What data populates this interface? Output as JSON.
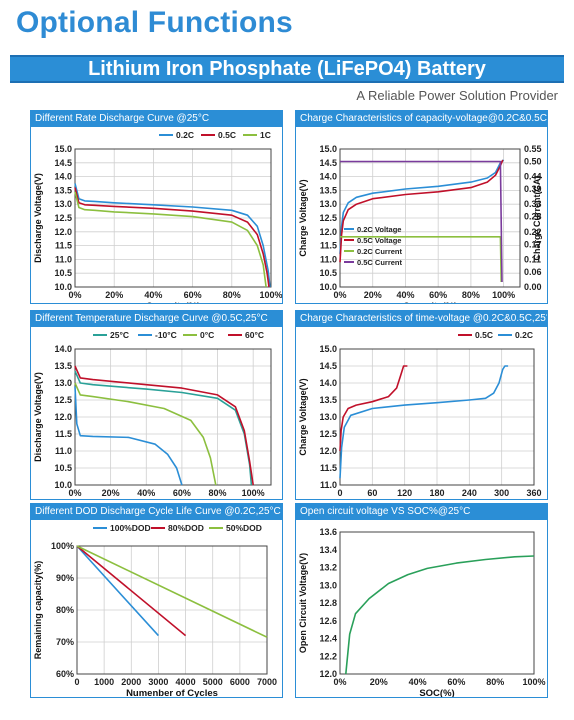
{
  "page": {
    "title": "Optional Functions",
    "banner": "Lithium Iron Phosphate (LiFePO4) Battery",
    "tagline": "A Reliable Power Solution Provider"
  },
  "chart_data": [
    {
      "id": "c1",
      "type": "line",
      "title": "Different Rate Discharge Curve @25°C",
      "xlabel": "Capacity(%)",
      "ylabel": "Discharge Voltage(V)",
      "xlim": [
        0,
        100
      ],
      "ylim": [
        10,
        15
      ],
      "xticks": [
        0,
        20,
        40,
        60,
        80,
        100
      ],
      "xtick_labels": [
        "0%",
        "20%",
        "40%",
        "60%",
        "80%",
        "100%"
      ],
      "yticks": [
        10,
        10.5,
        11,
        11.5,
        12,
        12.5,
        13,
        13.5,
        14,
        14.5,
        15
      ],
      "ytick_labels": [
        "10.0",
        "10.5",
        "11.0",
        "11.5",
        "12.0",
        "12.5",
        "13.0",
        "13.5",
        "14.0",
        "14.5",
        "15.0"
      ],
      "grid": true,
      "legend_position": "top",
      "series": [
        {
          "name": "0.2C",
          "color": "#2b8ed6",
          "points": [
            [
              0,
              13.75
            ],
            [
              2,
              13.2
            ],
            [
              5,
              13.12
            ],
            [
              10,
              13.1
            ],
            [
              20,
              13.05
            ],
            [
              40,
              12.98
            ],
            [
              60,
              12.9
            ],
            [
              80,
              12.78
            ],
            [
              88,
              12.6
            ],
            [
              93,
              12.2
            ],
            [
              96,
              11.5
            ],
            [
              98.5,
              10.6
            ],
            [
              99.5,
              10.0
            ]
          ]
        },
        {
          "name": "0.5C",
          "color": "#c0102a",
          "points": [
            [
              0,
              13.6
            ],
            [
              2,
              13.05
            ],
            [
              5,
              12.98
            ],
            [
              10,
              12.96
            ],
            [
              20,
              12.92
            ],
            [
              40,
              12.85
            ],
            [
              60,
              12.75
            ],
            [
              80,
              12.6
            ],
            [
              88,
              12.35
            ],
            [
              93,
              11.9
            ],
            [
              96,
              11.2
            ],
            [
              98,
              10.5
            ],
            [
              99,
              10.0
            ]
          ]
        },
        {
          "name": "1C",
          "color": "#8cbf3f",
          "points": [
            [
              0,
              13.45
            ],
            [
              2,
              12.88
            ],
            [
              5,
              12.8
            ],
            [
              10,
              12.78
            ],
            [
              20,
              12.72
            ],
            [
              40,
              12.65
            ],
            [
              60,
              12.55
            ],
            [
              80,
              12.35
            ],
            [
              88,
              12.05
            ],
            [
              93,
              11.5
            ],
            [
              96,
              10.8
            ],
            [
              97.5,
              10.0
            ]
          ]
        }
      ]
    },
    {
      "id": "c2",
      "type": "line",
      "title": "Charge Characteristics of capacity-voltage@0.2C&0.5C,25°C",
      "xlabel": "Capacity(%)",
      "ylabel": "Charge Voltage(V)",
      "y2label": "Charge Current(CA)",
      "xlim": [
        0,
        110
      ],
      "ylim": [
        10,
        15
      ],
      "y2lim": [
        0,
        0.55
      ],
      "xticks": [
        0,
        20,
        40,
        60,
        80,
        100
      ],
      "xtick_labels": [
        "0%",
        "20%",
        "40%",
        "60%",
        "80%",
        "100%"
      ],
      "yticks": [
        10,
        10.5,
        11,
        11.5,
        12,
        12.5,
        13,
        13.5,
        14,
        14.5,
        15
      ],
      "ytick_labels": [
        "10.0",
        "10.5",
        "11.0",
        "11.5",
        "12.0",
        "12.5",
        "13.0",
        "13.5",
        "14.0",
        "14.5",
        "15.0"
      ],
      "y2ticks": [
        0,
        0.06,
        0.11,
        0.17,
        0.22,
        0.28,
        0.33,
        0.39,
        0.44,
        0.5,
        0.55
      ],
      "y2tick_labels": [
        "0.00",
        "0.06",
        "0.11",
        "0.17",
        "0.22",
        "0.28",
        "0.33",
        "0.39",
        "0.44",
        "0.50",
        "0.55"
      ],
      "grid": true,
      "legend_position": "bottom-left",
      "series": [
        {
          "name": "0.2C Voltage",
          "color": "#2b8ed6",
          "points": [
            [
              0,
              11.2
            ],
            [
              1,
              12.2
            ],
            [
              2,
              12.7
            ],
            [
              5,
              13.05
            ],
            [
              10,
              13.25
            ],
            [
              20,
              13.4
            ],
            [
              40,
              13.55
            ],
            [
              60,
              13.65
            ],
            [
              80,
              13.8
            ],
            [
              90,
              13.95
            ],
            [
              95,
              14.15
            ],
            [
              98,
              14.5
            ],
            [
              100,
              14.6
            ]
          ]
        },
        {
          "name": "0.5C Voltage",
          "color": "#c0102a",
          "points": [
            [
              0,
              10.9
            ],
            [
              1,
              11.9
            ],
            [
              2,
              12.4
            ],
            [
              5,
              12.8
            ],
            [
              10,
              13.0
            ],
            [
              20,
              13.2
            ],
            [
              40,
              13.35
            ],
            [
              60,
              13.45
            ],
            [
              80,
              13.6
            ],
            [
              90,
              13.8
            ],
            [
              95,
              14.05
            ],
            [
              98,
              14.4
            ],
            [
              99.5,
              14.6
            ]
          ]
        },
        {
          "name": "0.2C Current",
          "axis": "y2",
          "color": "#8cbf3f",
          "points": [
            [
              0,
              0.2
            ],
            [
              98,
              0.2
            ],
            [
              98.5,
              0.02
            ]
          ]
        },
        {
          "name": "0.5C Current",
          "axis": "y2",
          "color": "#7a3b9c",
          "points": [
            [
              0,
              0.5
            ],
            [
              98,
              0.5
            ],
            [
              99,
              0.02
            ]
          ]
        }
      ]
    },
    {
      "id": "c3",
      "type": "line",
      "title": "Different Temperature Discharge Curve @0.5C,25°C",
      "xlabel": "Capacity(%)",
      "ylabel": "Discharge Voltage(V)",
      "xlim": [
        0,
        110
      ],
      "ylim": [
        10,
        14
      ],
      "xticks": [
        0,
        20,
        40,
        60,
        80,
        100
      ],
      "xtick_labels": [
        "0%",
        "20%",
        "40%",
        "60%",
        "80%",
        "100%"
      ],
      "yticks": [
        10,
        10.5,
        11,
        11.5,
        12,
        12.5,
        13,
        13.5,
        14
      ],
      "ytick_labels": [
        "10.0",
        "10.5",
        "11.0",
        "11.5",
        "12.0",
        "12.5",
        "13.0",
        "13.5",
        "14.0"
      ],
      "grid": true,
      "legend_position": "top",
      "series": [
        {
          "name": "25°C",
          "color": "#2aa198",
          "points": [
            [
              0,
              13.35
            ],
            [
              3,
              13.0
            ],
            [
              10,
              12.95
            ],
            [
              40,
              12.82
            ],
            [
              60,
              12.72
            ],
            [
              80,
              12.55
            ],
            [
              90,
              12.2
            ],
            [
              95,
              11.5
            ],
            [
              98,
              10.6
            ],
            [
              99,
              10.0
            ]
          ]
        },
        {
          "name": "-10°C",
          "color": "#2b8ed6",
          "points": [
            [
              0,
              12.9
            ],
            [
              1,
              11.8
            ],
            [
              3,
              11.45
            ],
            [
              10,
              11.43
            ],
            [
              30,
              11.4
            ],
            [
              45,
              11.2
            ],
            [
              52,
              10.9
            ],
            [
              57,
              10.5
            ],
            [
              60,
              10.0
            ]
          ]
        },
        {
          "name": "0°C",
          "color": "#8cbf3f",
          "points": [
            [
              0,
              13.0
            ],
            [
              3,
              12.65
            ],
            [
              10,
              12.6
            ],
            [
              30,
              12.45
            ],
            [
              50,
              12.25
            ],
            [
              65,
              11.9
            ],
            [
              72,
              11.4
            ],
            [
              76,
              10.8
            ],
            [
              79,
              10.0
            ]
          ]
        },
        {
          "name": "60°C",
          "color": "#c0102a",
          "points": [
            [
              0,
              13.5
            ],
            [
              3,
              13.15
            ],
            [
              10,
              13.1
            ],
            [
              40,
              12.95
            ],
            [
              60,
              12.85
            ],
            [
              80,
              12.65
            ],
            [
              90,
              12.3
            ],
            [
              95,
              11.6
            ],
            [
              98,
              10.7
            ],
            [
              100,
              10.0
            ]
          ]
        }
      ]
    },
    {
      "id": "c4",
      "type": "line",
      "title": "Charge Characteristics of time-voltage @0.2C&0.5C,25°C",
      "xlabel": "Charge time(min)",
      "ylabel": "Charge Voltage(V)",
      "xlim": [
        0,
        360
      ],
      "ylim": [
        11,
        15
      ],
      "xticks": [
        0,
        60,
        120,
        180,
        240,
        300,
        360
      ],
      "xtick_labels": [
        "0",
        "60",
        "120",
        "180",
        "240",
        "300",
        "360"
      ],
      "yticks": [
        11,
        11.5,
        12,
        12.5,
        13,
        13.5,
        14,
        14.5,
        15
      ],
      "ytick_labels": [
        "11.0",
        "11.5",
        "12.0",
        "12.5",
        "13.0",
        "13.5",
        "14.0",
        "14.5",
        "15.0"
      ],
      "grid": true,
      "legend_position": "top",
      "series": [
        {
          "name": "0.5C",
          "color": "#c0102a",
          "points": [
            [
              0,
              12.0
            ],
            [
              2,
              12.6
            ],
            [
              6,
              13.0
            ],
            [
              15,
              13.25
            ],
            [
              30,
              13.35
            ],
            [
              60,
              13.45
            ],
            [
              90,
              13.6
            ],
            [
              105,
              13.85
            ],
            [
              112,
              14.2
            ],
            [
              118,
              14.5
            ],
            [
              125,
              14.5
            ]
          ]
        },
        {
          "name": "0.2C",
          "color": "#2b8ed6",
          "points": [
            [
              0,
              11.2
            ],
            [
              3,
              12.1
            ],
            [
              8,
              12.7
            ],
            [
              20,
              13.05
            ],
            [
              60,
              13.25
            ],
            [
              120,
              13.35
            ],
            [
              180,
              13.42
            ],
            [
              240,
              13.5
            ],
            [
              270,
              13.55
            ],
            [
              285,
              13.7
            ],
            [
              295,
              14.0
            ],
            [
              302,
              14.4
            ],
            [
              306,
              14.5
            ],
            [
              312,
              14.5
            ]
          ]
        }
      ]
    },
    {
      "id": "c5",
      "type": "line",
      "title": "Different DOD Discharge Cycle Life Curve @0.2C,25°C",
      "xlabel": "Numenber of Cycles",
      "ylabel": "Remaining capacity(%)",
      "xlim": [
        0,
        7000
      ],
      "ylim": [
        60,
        100
      ],
      "xticks": [
        0,
        1000,
        2000,
        3000,
        4000,
        5000,
        6000,
        7000
      ],
      "xtick_labels": [
        "0",
        "1000",
        "2000",
        "3000",
        "4000",
        "5000",
        "6000",
        "7000"
      ],
      "yticks": [
        60,
        70,
        80,
        90,
        100
      ],
      "ytick_labels": [
        "60%",
        "70%",
        "80%",
        "90%",
        "100%"
      ],
      "grid": true,
      "legend_position": "top",
      "series": [
        {
          "name": "100%DOD",
          "color": "#2b8ed6",
          "points": [
            [
              0,
              100
            ],
            [
              3000,
              72
            ]
          ]
        },
        {
          "name": "80%DOD",
          "color": "#c0102a",
          "points": [
            [
              0,
              100
            ],
            [
              4000,
              72
            ]
          ]
        },
        {
          "name": "50%DOD",
          "color": "#8cbf3f",
          "points": [
            [
              0,
              100
            ],
            [
              7000,
              71.5
            ]
          ]
        }
      ]
    },
    {
      "id": "c6",
      "type": "line",
      "title": "Open circuit voltage VS SOC%@25°C",
      "xlabel": "SOC(%)",
      "ylabel": "Open Circuit Voltage(V)",
      "xlim": [
        0,
        100
      ],
      "ylim": [
        12.0,
        13.6
      ],
      "xticks": [
        0,
        20,
        40,
        60,
        80,
        100
      ],
      "xtick_labels": [
        "0%",
        "20%",
        "40%",
        "60%",
        "80%",
        "100%"
      ],
      "yticks": [
        12.0,
        12.2,
        12.4,
        12.6,
        12.8,
        13.0,
        13.2,
        13.4,
        13.6
      ],
      "ytick_labels": [
        "12.0",
        "12.2",
        "12.4",
        "12.6",
        "12.8",
        "13.0",
        "13.2",
        "13.4",
        "13.6"
      ],
      "grid": false,
      "series": [
        {
          "name": "",
          "color": "#2aa05a",
          "points": [
            [
              3,
              12.0
            ],
            [
              5,
              12.45
            ],
            [
              8,
              12.68
            ],
            [
              15,
              12.85
            ],
            [
              25,
              13.02
            ],
            [
              35,
              13.12
            ],
            [
              45,
              13.19
            ],
            [
              60,
              13.25
            ],
            [
              75,
              13.29
            ],
            [
              90,
              13.32
            ],
            [
              100,
              13.33
            ]
          ]
        }
      ]
    }
  ]
}
